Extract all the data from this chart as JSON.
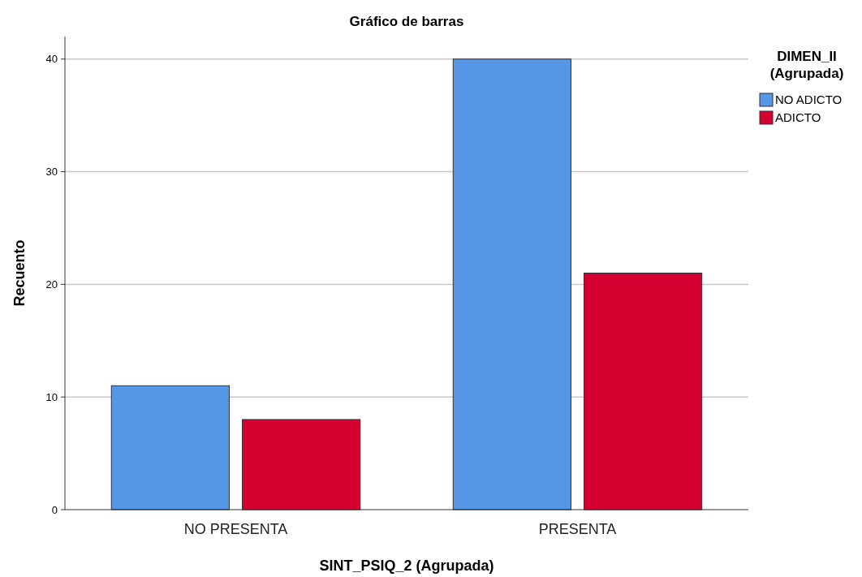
{
  "chart_data": {
    "type": "bar",
    "title": "Gráfico de barras",
    "xlabel": "SINT_PSIQ_2 (Agrupada)",
    "ylabel": "Recuento",
    "legend_title": "DIMEN_II (Agrupada)",
    "categories": [
      "NO PRESENTA",
      "PRESENTA"
    ],
    "series": [
      {
        "name": "NO ADICTO",
        "color": "#5596e6",
        "values": [
          11,
          40
        ]
      },
      {
        "name": "ADICTO",
        "color": "#d4002f",
        "values": [
          8,
          21
        ]
      }
    ],
    "ylim": [
      0,
      42
    ],
    "yticks": [
      0,
      10,
      20,
      30,
      40
    ],
    "grid": "y",
    "legend": "top right"
  }
}
